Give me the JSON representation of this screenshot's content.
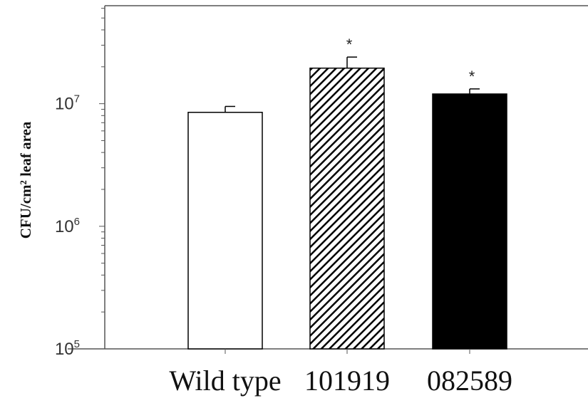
{
  "chart_data": {
    "type": "bar",
    "title": "",
    "xlabel": "",
    "ylabel": "CFU/cm² leaf area",
    "yscale": "log",
    "ylim": [
      100000,
      63000000
    ],
    "yticks": [
      {
        "value": 100000,
        "base": "10",
        "exp": "5"
      },
      {
        "value": 1000000,
        "base": "10",
        "exp": "6"
      },
      {
        "value": 10000000,
        "base": "10",
        "exp": "7"
      }
    ],
    "categories": [
      "Wild type",
      "101919",
      "082589"
    ],
    "values": [
      8500000,
      19500000,
      12000000
    ],
    "errors": [
      1000000,
      4500000,
      1200000
    ],
    "fills": [
      "white",
      "hatched",
      "black"
    ],
    "significance": [
      "",
      "*",
      "*"
    ],
    "grid": false,
    "legend": "none"
  },
  "colors": {
    "axis": "#555555",
    "bar_outline": "#000000",
    "bar_solid": "#000000"
  }
}
